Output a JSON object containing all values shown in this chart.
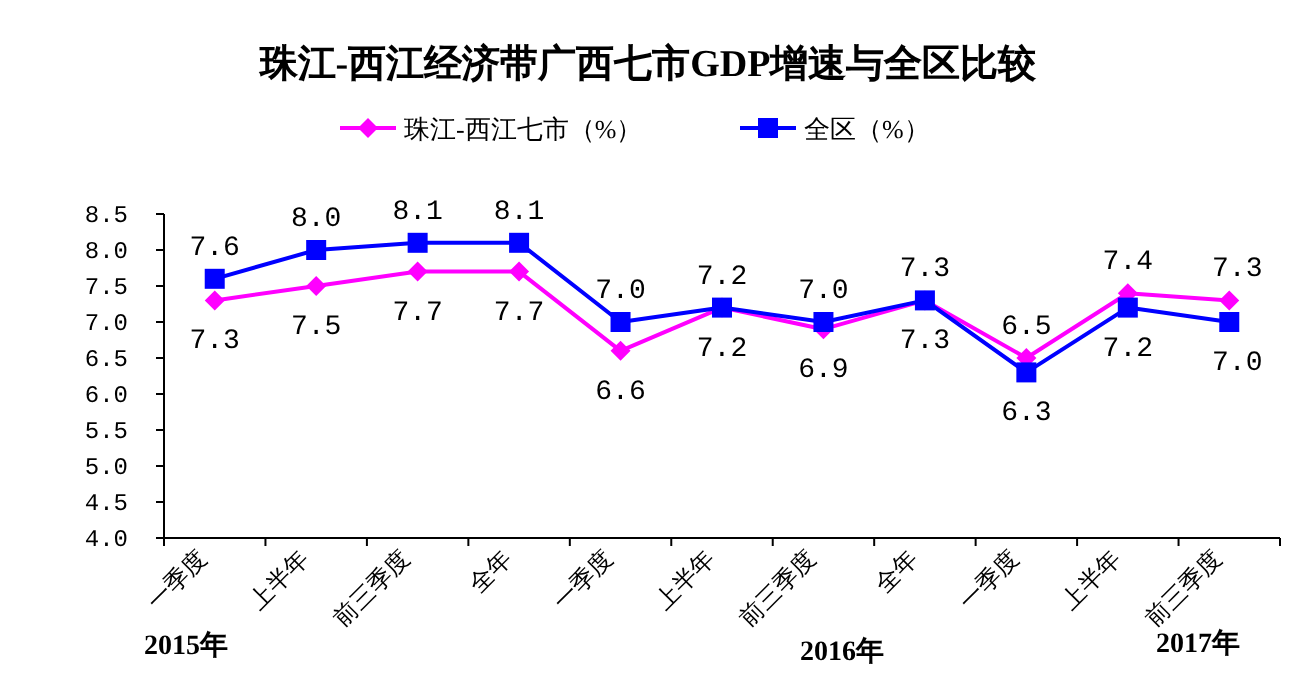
{
  "chart_data": {
    "type": "line",
    "title": "珠江-西江经济带广西七市GDP增速与全区比较",
    "categories": [
      "一季度",
      "上半年",
      "前三季度",
      "全年",
      "一季度",
      "上半年",
      "前三季度",
      "全年",
      "一季度",
      "上半年",
      "前三季度"
    ],
    "series": [
      {
        "name": "珠江-西江七市（%）",
        "color": "#ff00ff",
        "marker": "diamond",
        "values": [
          7.3,
          7.5,
          7.7,
          7.7,
          6.6,
          7.2,
          6.9,
          7.3,
          6.5,
          7.4,
          7.3
        ],
        "value_labels": [
          "7.3",
          "7.5",
          "7.7",
          "7.7",
          "6.6",
          "7.2",
          "6.9",
          "7.3",
          "6.5",
          "7.4",
          "7.3"
        ]
      },
      {
        "name": "全区（%）",
        "color": "#0000ff",
        "marker": "square",
        "values": [
          7.6,
          8.0,
          8.1,
          8.1,
          7.0,
          7.2,
          7.0,
          7.3,
          6.3,
          7.2,
          7.0
        ],
        "value_labels": [
          "7.6",
          "8.0",
          "8.1",
          "8.1",
          "7.0",
          "7.2",
          "7.0",
          "7.3",
          "6.3",
          "7.2",
          "7.0"
        ]
      }
    ],
    "ylim": [
      4.0,
      8.5
    ],
    "yticks": [
      {
        "value": 4.0,
        "label": "4.0"
      },
      {
        "value": 4.5,
        "label": "4.5"
      },
      {
        "value": 5.0,
        "label": "5.0"
      },
      {
        "value": 5.5,
        "label": "5.5"
      },
      {
        "value": 6.0,
        "label": "6.0"
      },
      {
        "value": 6.5,
        "label": "6.5"
      },
      {
        "value": 7.0,
        "label": "7.0"
      },
      {
        "value": 7.5,
        "label": "7.5"
      },
      {
        "value": 8.0,
        "label": "8.0"
      },
      {
        "value": 8.5,
        "label": "8.5"
      }
    ],
    "legend": "top",
    "grid": false,
    "annotations": [
      "2015年",
      "2016年",
      "2017年"
    ]
  }
}
